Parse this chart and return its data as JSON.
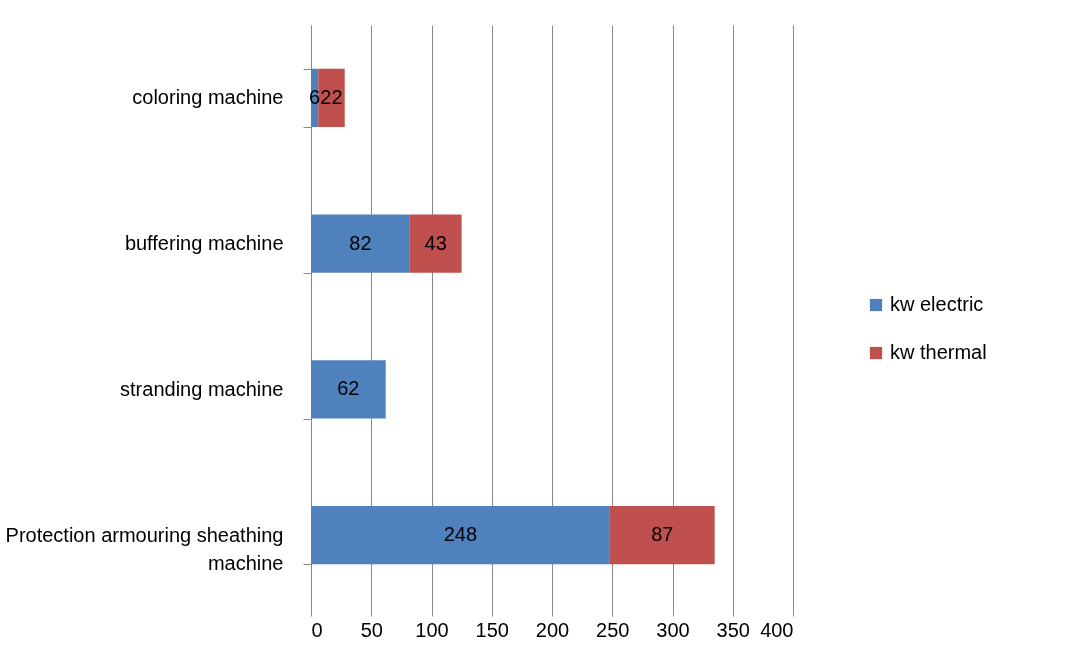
{
  "chart_data": {
    "type": "bar",
    "orientation": "horizontal",
    "stacked": true,
    "categories": [
      "coloring machine",
      "buffering machine",
      "stranding machine",
      "Protection armouring sheathing machine"
    ],
    "series": [
      {
        "name": "kw electric",
        "color": "#4f81bd",
        "values": [
          6,
          82,
          62,
          248
        ]
      },
      {
        "name": "kw thermal",
        "color": "#c0504d",
        "values": [
          22,
          43,
          null,
          87
        ]
      }
    ],
    "xlim": [
      0,
      400
    ],
    "xticks": [
      0,
      50,
      100,
      150,
      200,
      250,
      300,
      350,
      400
    ],
    "grid": "x",
    "legend": "right",
    "data_labels": true
  }
}
